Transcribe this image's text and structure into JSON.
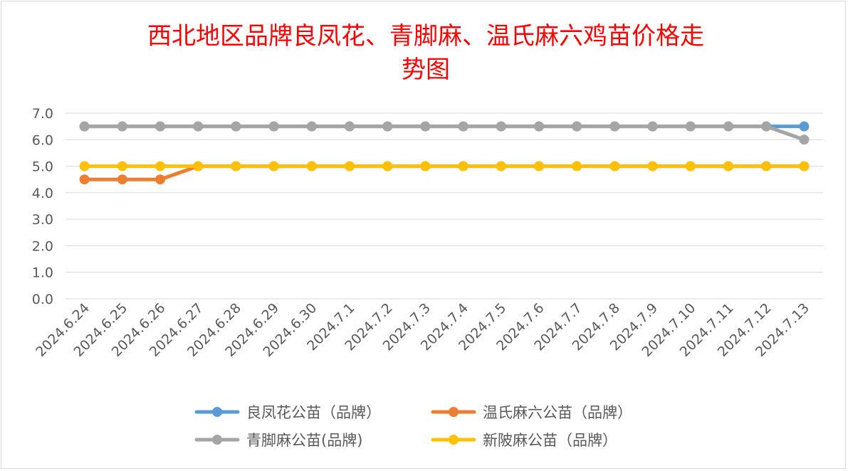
{
  "chart_data": {
    "type": "line",
    "title_lines": [
      "西北地区品牌良凤花、青脚麻、温氏麻六鸡苗价格走",
      "势图"
    ],
    "xlabel": "",
    "ylabel": "",
    "x": [
      "2024.6.24",
      "2024.6.25",
      "2024.6.26",
      "2024.6.27",
      "2024.6.28",
      "2024.6.29",
      "2024.6.30",
      "2024.7.1",
      "2024.7.2",
      "2024.7.3",
      "2024.7.4",
      "2024.7.5",
      "2024.7.6",
      "2024.7.7",
      "2024.7.8",
      "2024.7.9",
      "2024.7.10",
      "2024.7.11",
      "2024.7.12",
      "2024.7.13"
    ],
    "ylim": [
      0,
      7
    ],
    "yticks": [
      "0.0",
      "1.0",
      "2.0",
      "3.0",
      "4.0",
      "5.0",
      "6.0",
      "7.0"
    ],
    "grid": true,
    "legend_position": "bottom",
    "series": [
      {
        "name": "良凤花公苗（品牌）",
        "color": "#5b9bd5",
        "values": [
          6.5,
          6.5,
          6.5,
          6.5,
          6.5,
          6.5,
          6.5,
          6.5,
          6.5,
          6.5,
          6.5,
          6.5,
          6.5,
          6.5,
          6.5,
          6.5,
          6.5,
          6.5,
          6.5,
          6.5
        ]
      },
      {
        "name": "温氏麻六公苗（品牌）",
        "color": "#ed7d31",
        "values": [
          4.5,
          4.5,
          4.5,
          5,
          5,
          5,
          5,
          5,
          5,
          5,
          5,
          5,
          5,
          5,
          5,
          5,
          5,
          5,
          5,
          5
        ]
      },
      {
        "name": "青脚麻公苗(品牌)",
        "color": "#a5a5a5",
        "values": [
          6.5,
          6.5,
          6.5,
          6.5,
          6.5,
          6.5,
          6.5,
          6.5,
          6.5,
          6.5,
          6.5,
          6.5,
          6.5,
          6.5,
          6.5,
          6.5,
          6.5,
          6.5,
          6.5,
          6
        ]
      },
      {
        "name": "新陂麻公苗（品牌）",
        "color": "#ffc000",
        "values": [
          5,
          5,
          5,
          5,
          5,
          5,
          5,
          5,
          5,
          5,
          5,
          5,
          5,
          5,
          5,
          5,
          5,
          5,
          5,
          5
        ]
      }
    ]
  }
}
